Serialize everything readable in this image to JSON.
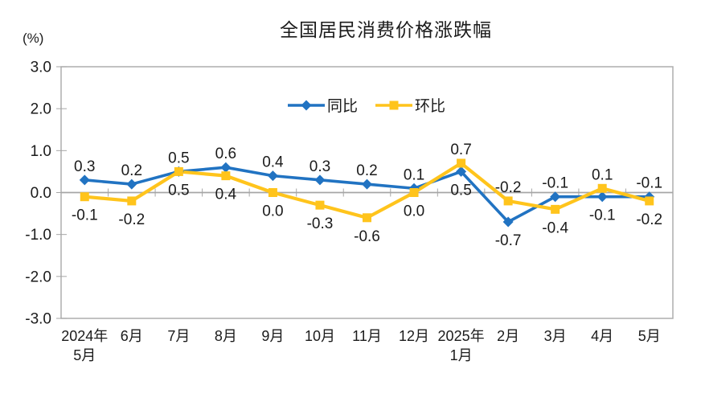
{
  "chart_data": {
    "type": "line",
    "title": "全国居民消费价格涨跌幅",
    "unit_label": "(%)",
    "categories": [
      [
        "2024年",
        "5月"
      ],
      [
        "6月"
      ],
      [
        "7月"
      ],
      [
        "8月"
      ],
      [
        "9月"
      ],
      [
        "10月"
      ],
      [
        "11月"
      ],
      [
        "12月"
      ],
      [
        "2025年",
        "1月"
      ],
      [
        "2月"
      ],
      [
        "3月"
      ],
      [
        "4月"
      ],
      [
        "5月"
      ]
    ],
    "ylim": [
      -3,
      3
    ],
    "yticks": [
      3.0,
      2.0,
      1.0,
      0.0,
      -1.0,
      -2.0,
      -3.0
    ],
    "grid": "zero-line-only",
    "legend_position": "top-center-inside",
    "series": [
      {
        "name": "同比",
        "marker": "diamond",
        "color": "#2173C2",
        "values": [
          0.3,
          0.2,
          0.5,
          0.6,
          0.4,
          0.3,
          0.2,
          0.1,
          0.5,
          -0.7,
          -0.1,
          -0.1,
          -0.1
        ],
        "label_positions": [
          "above",
          "above",
          "above",
          "above",
          "above",
          "above",
          "above",
          "above",
          "below",
          "below",
          "above",
          "below",
          "above"
        ]
      },
      {
        "name": "环比",
        "marker": "square",
        "color": "#FFC41C",
        "values": [
          -0.1,
          -0.2,
          0.5,
          0.4,
          0.0,
          -0.3,
          -0.6,
          0.0,
          0.7,
          -0.2,
          -0.4,
          0.1,
          -0.2
        ],
        "label_positions": [
          "below",
          "below",
          "below",
          "below",
          "below",
          "below",
          "below",
          "below",
          "above",
          "above",
          "below",
          "above",
          "below"
        ]
      }
    ],
    "colors": {
      "axis": "#A6A6A6",
      "plot_border": "#ADADAD",
      "text": "#1b1b1b"
    }
  }
}
